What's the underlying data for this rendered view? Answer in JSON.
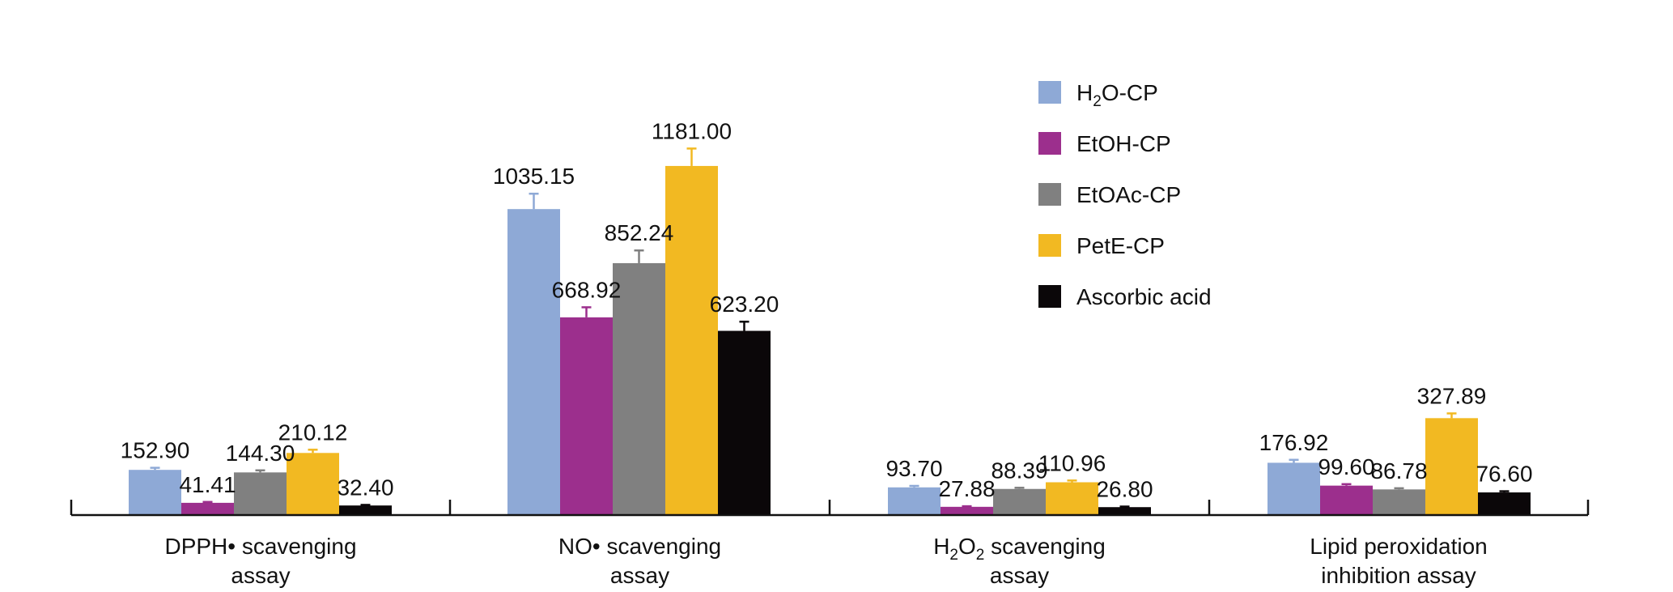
{
  "chart_data": {
    "type": "bar",
    "title": "",
    "xlabel": "",
    "ylabel": "",
    "ylim": [
      0,
      1300
    ],
    "grid": false,
    "legend_position": "top-right",
    "categories": [
      {
        "lines": [
          [
            "DPPH• scavenging"
          ],
          [
            "assay"
          ]
        ]
      },
      {
        "lines": [
          [
            "NO• scavenging"
          ],
          [
            "assay"
          ]
        ]
      },
      {
        "lines": [
          [
            "H",
            {
              "sub": "2"
            },
            "O",
            {
              "sub": "2"
            },
            " scavenging"
          ],
          [
            "assay"
          ]
        ]
      },
      {
        "lines": [
          [
            "Lipid peroxidation"
          ],
          [
            "inhibition assay"
          ]
        ]
      }
    ],
    "series": [
      {
        "name": [
          [
            "H",
            {
              "sub": "2"
            },
            "O-CP"
          ]
        ],
        "color": "#8EA9D6",
        "values": [
          152.9,
          1035.15,
          93.7,
          176.92
        ],
        "labels": [
          "152.90",
          "1035.15",
          "93.70",
          "176.92"
        ],
        "errors": [
          7,
          52,
          5,
          10
        ]
      },
      {
        "name": [
          [
            "EtOH-CP"
          ]
        ],
        "color": "#9C2F8D",
        "values": [
          41.41,
          668.92,
          27.88,
          99.6
        ],
        "labels": [
          "41.41",
          "668.92",
          "27.88",
          "99.60"
        ],
        "errors": [
          3,
          34,
          2,
          5
        ]
      },
      {
        "name": [
          [
            "EtOAc-CP"
          ]
        ],
        "color": "#808080",
        "values": [
          144.3,
          852.24,
          88.39,
          86.78
        ],
        "labels": [
          "144.30",
          "852.24",
          "88.39",
          "86.78"
        ],
        "errors": [
          7,
          43,
          4,
          4
        ]
      },
      {
        "name": [
          [
            "PetE-CP"
          ]
        ],
        "color": "#F2B922",
        "values": [
          210.12,
          1181.0,
          110.96,
          327.89
        ],
        "labels": [
          "210.12",
          "1181.00",
          "110.96",
          "327.89"
        ],
        "errors": [
          11,
          59,
          6,
          16
        ]
      },
      {
        "name": [
          [
            "Ascorbic acid"
          ]
        ],
        "color": "#0B0709",
        "values": [
          32.4,
          623.2,
          26.8,
          76.6
        ],
        "labels": [
          "32.40",
          "623.20",
          "26.80",
          "76.60"
        ],
        "errors": [
          2,
          31,
          2,
          4
        ]
      }
    ]
  }
}
